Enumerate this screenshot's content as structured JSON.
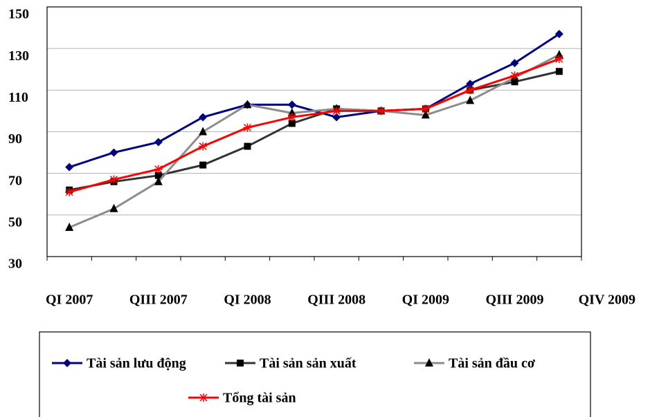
{
  "chart_data": {
    "type": "line",
    "categories": [
      "QI 2007",
      null,
      "QIII 2007",
      null,
      "QI 2008",
      null,
      "QIII 2008",
      null,
      "QI 2009",
      null,
      "QIII 2009",
      "QIV 2009"
    ],
    "series": [
      {
        "name": "Tài sản lưu động",
        "color": "#000080",
        "marker": "diamond",
        "values": [
          73,
          80,
          85,
          97,
          103,
          103,
          97,
          100,
          101,
          113,
          123,
          137
        ]
      },
      {
        "name": "Tài sản sản xuất",
        "color": "#333333",
        "marker": "square",
        "values": [
          62,
          66,
          69,
          74,
          83,
          94,
          101,
          100,
          101,
          110,
          114,
          119
        ]
      },
      {
        "name": "Tài sản đầu cơ",
        "color": "#8c8c8c",
        "marker": "triangle",
        "values": [
          44,
          53,
          66,
          90,
          103,
          99,
          101,
          100,
          98,
          105,
          116,
          127
        ]
      },
      {
        "name": "Tổng tài sản",
        "color": "#ff0000",
        "marker": "star",
        "values": [
          61,
          67,
          72,
          83,
          92,
          97,
          100,
          100,
          101,
          110,
          117,
          125
        ]
      }
    ],
    "ylim": [
      30,
      150
    ],
    "yticks": [
      30,
      50,
      70,
      90,
      110,
      130,
      150
    ],
    "grid": true,
    "legend": "bottom"
  }
}
